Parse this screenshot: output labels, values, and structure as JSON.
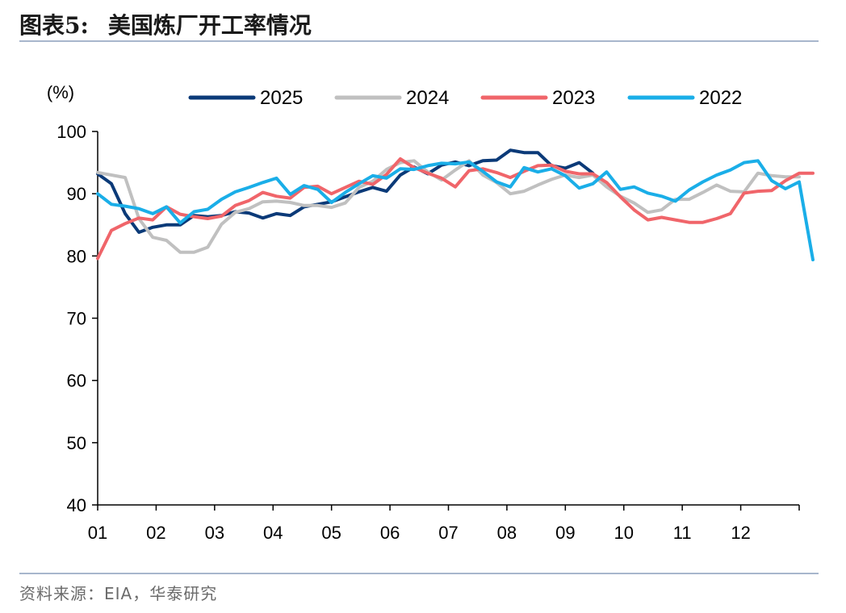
{
  "header": {
    "figure_label": "图表5:",
    "title": "美国炼厂开工率情况"
  },
  "footer": {
    "source": "资料来源：EIA，华泰研究"
  },
  "chart_data": {
    "type": "line",
    "ylabel": "(%)",
    "ylim": [
      40,
      100
    ],
    "yticks": [
      40,
      50,
      60,
      70,
      80,
      90,
      100
    ],
    "x_ticks": [
      "01",
      "02",
      "03",
      "04",
      "05",
      "06",
      "07",
      "08",
      "09",
      "10",
      "11",
      "12"
    ],
    "x_range": [
      1,
      52
    ],
    "legend_position": "top",
    "grid": false,
    "series": [
      {
        "name": "2025",
        "color": "#0b3a78",
        "values": [
          93.2,
          91.6,
          86.8,
          83.8,
          84.6,
          85.0,
          85.0,
          86.5,
          86.3,
          86.5,
          87.1,
          86.9,
          86.1,
          86.8,
          86.5,
          87.9,
          88.3,
          88.7,
          89.5,
          90.3,
          91.0,
          90.4,
          93.0,
          94.3,
          93.2,
          94.6,
          95.1,
          94.5,
          95.3,
          95.4,
          97.0,
          96.6,
          96.6,
          94.5,
          94.1,
          95.0,
          93.3
        ]
      },
      {
        "name": "2024",
        "color": "#c0c0c0",
        "values": [
          93.4,
          93.0,
          92.6,
          86.0,
          83.0,
          82.5,
          80.6,
          80.6,
          81.4,
          85.1,
          87.0,
          87.6,
          88.7,
          88.8,
          88.6,
          88.1,
          88.1,
          87.8,
          88.5,
          91.0,
          92.0,
          93.9,
          95.0,
          95.3,
          93.5,
          92.2,
          93.8,
          95.3,
          93.0,
          91.8,
          90.0,
          90.4,
          91.4,
          92.3,
          93.0,
          92.6,
          93.0,
          91.1,
          89.6,
          88.5,
          87.0,
          87.4,
          89.1,
          89.1,
          90.2,
          91.4,
          90.4,
          90.3,
          93.3,
          92.9,
          92.7,
          92.7
        ]
      },
      {
        "name": "2023",
        "color": "#f0656a",
        "values": [
          79.6,
          84.1,
          85.2,
          86.1,
          85.8,
          87.9,
          86.7,
          86.3,
          86.0,
          86.4,
          88.1,
          88.9,
          90.2,
          89.6,
          89.3,
          91.0,
          91.2,
          90.0,
          91.0,
          92.0,
          91.5,
          93.1,
          95.6,
          94.2,
          93.3,
          92.5,
          91.1,
          93.7,
          94.0,
          93.4,
          92.6,
          93.6,
          94.5,
          94.6,
          93.6,
          93.2,
          93.2,
          91.8,
          89.5,
          87.4,
          85.8,
          86.2,
          85.8,
          85.4,
          85.4,
          86.0,
          86.8,
          90.1,
          90.4,
          90.5,
          92.1,
          93.3,
          93.3
        ]
      },
      {
        "name": "2022",
        "color": "#1aaee8",
        "values": [
          90.0,
          88.3,
          88.0,
          87.6,
          86.8,
          87.9,
          85.3,
          87.1,
          87.5,
          89.1,
          90.3,
          91.0,
          91.8,
          92.5,
          89.9,
          91.3,
          90.7,
          88.6,
          90.2,
          91.6,
          92.9,
          92.5,
          94.0,
          93.9,
          94.5,
          94.9,
          94.8,
          95.1,
          93.6,
          91.9,
          91.1,
          94.2,
          93.5,
          94.0,
          92.9,
          90.9,
          91.6,
          93.5,
          90.7,
          91.1,
          90.1,
          89.6,
          88.8,
          90.6,
          91.9,
          93.0,
          93.8,
          95.0,
          95.3,
          92.1,
          90.8,
          91.9,
          79.4
        ]
      }
    ]
  }
}
